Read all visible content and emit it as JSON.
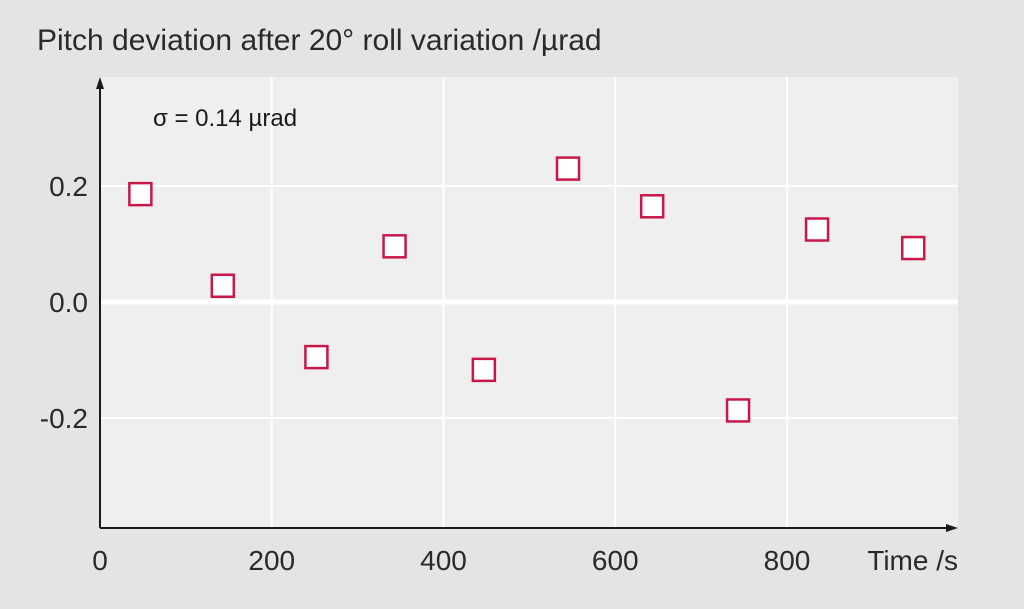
{
  "chart_data": {
    "type": "scatter",
    "title": "Pitch deviation after 20° roll variation /µrad",
    "xlabel": "Time /s",
    "ylabel": "",
    "annotation": "σ = 0.14 µrad",
    "xlim": [
      0,
      1000
    ],
    "ylim": [
      -0.39,
      0.39
    ],
    "x_ticks": [
      0,
      200,
      400,
      600,
      800
    ],
    "x_tick_labels": [
      "0",
      "200",
      "400",
      "600",
      "800"
    ],
    "y_ticks": [
      0.2,
      0.0,
      -0.2
    ],
    "y_tick_labels": [
      "0.2",
      "0.0",
      "-0.2"
    ],
    "grid": true,
    "marker": "open-square",
    "points": [
      {
        "x": 47,
        "y": 0.186
      },
      {
        "x": 143,
        "y": 0.028
      },
      {
        "x": 252,
        "y": -0.095
      },
      {
        "x": 343,
        "y": 0.096
      },
      {
        "x": 447,
        "y": -0.117
      },
      {
        "x": 545,
        "y": 0.23
      },
      {
        "x": 643,
        "y": 0.165
      },
      {
        "x": 743,
        "y": -0.187
      },
      {
        "x": 835,
        "y": 0.125
      },
      {
        "x": 947,
        "y": 0.093
      }
    ]
  },
  "colors": {
    "page_background": "#e4e4e4",
    "plot_background": "#efefef",
    "grid": "#ffffff",
    "axis": "#1a1a1a",
    "marker": "#c8184a",
    "marker_fill": "#ffffff"
  }
}
